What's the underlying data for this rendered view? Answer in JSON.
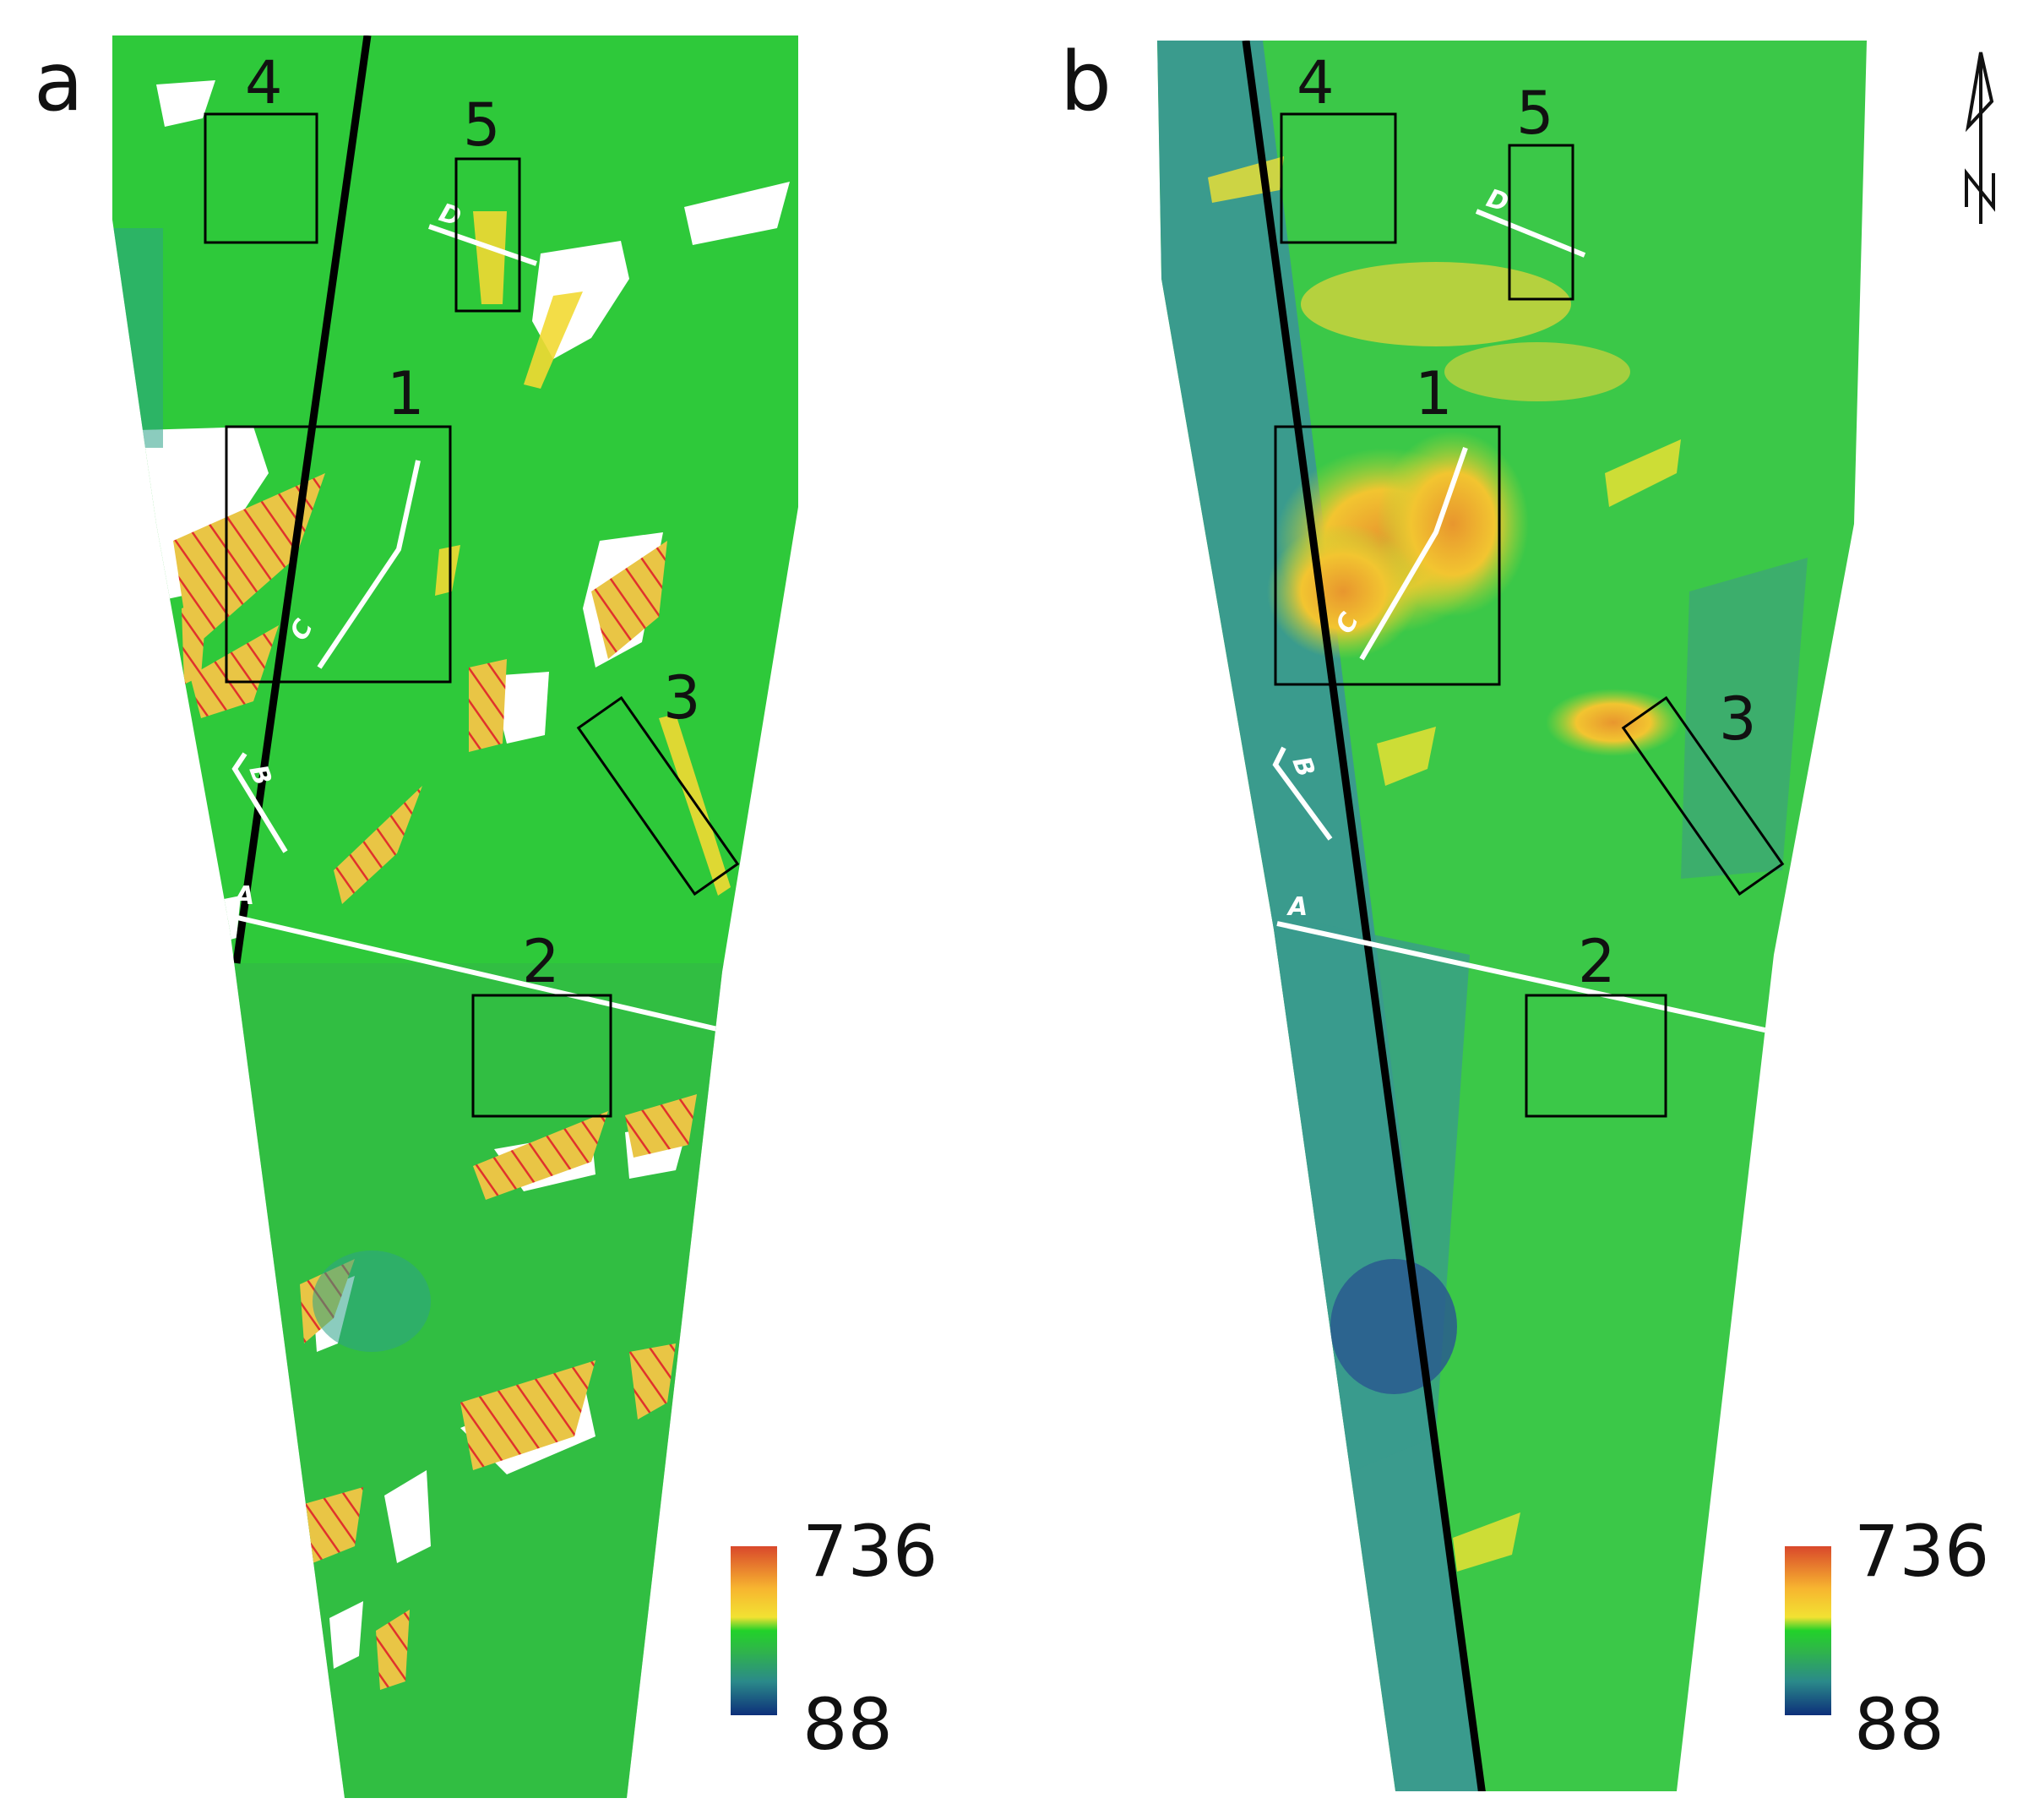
{
  "figure": {
    "panels": [
      {
        "label": "a",
        "box_labels": [
          "1",
          "2",
          "3",
          "4",
          "5"
        ],
        "profile_labels": [
          "A",
          "B",
          "C",
          "D"
        ],
        "legend": {
          "max": "736",
          "min": "88"
        }
      },
      {
        "label": "b",
        "box_labels": [
          "1",
          "2",
          "3",
          "4",
          "5"
        ],
        "profile_labels": [
          "A",
          "B",
          "C",
          "D"
        ],
        "legend": {
          "max": "736",
          "min": "88"
        }
      }
    ],
    "north_arrow_icon": "north-arrow-icon",
    "colors": {
      "scale_high": "#d9482b",
      "scale_upper": "#f7b530",
      "scale_mid": "#f2e232",
      "scale_green": "#22d22a",
      "scale_low": "#2b8a8a",
      "scale_min": "#0d2f7a",
      "snow_white": "#ffffff",
      "hatch_red": "#e0322c",
      "fault_line": "#000000",
      "profile_line": "#ffffff"
    }
  }
}
